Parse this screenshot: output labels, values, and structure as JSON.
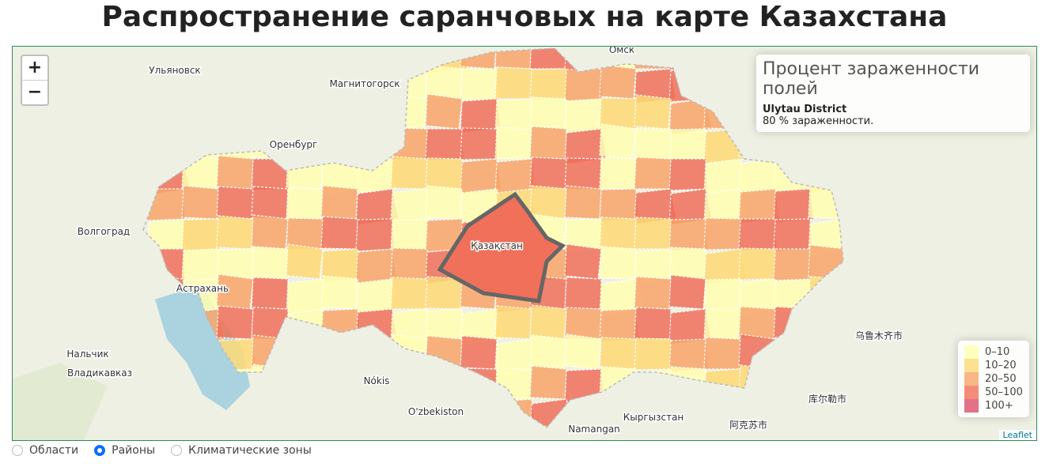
{
  "title": "Распространение саранчовых на карте Казахстана",
  "map": {
    "zoom_in": "+",
    "zoom_out": "−",
    "attribution": "Leaflet",
    "place_labels": [
      "Омск",
      "Ульяновск",
      "Магнитогорск",
      "Оренбург",
      "Волгоград",
      "Астрахань",
      "Нальчик",
      "Владикавказ",
      "Nókis",
      "O'zbekiston",
      "Namangan",
      "Кыргызстан",
      "Қазақстан",
      "乌鲁木齐市",
      "库尔勒市",
      "阿克苏市"
    ]
  },
  "info": {
    "title": "Процент зараженности полей",
    "district": "Ulytau District",
    "text": "80 % зараженности."
  },
  "legend": [
    {
      "label": "0–10",
      "color": "#ffffb2"
    },
    {
      "label": "10–20",
      "color": "#fed976"
    },
    {
      "label": "20–50",
      "color": "#f8a56a"
    },
    {
      "label": "50–100",
      "color": "#f0705a"
    },
    {
      "label": "100+",
      "color": "#d94f6a"
    }
  ],
  "layers": [
    {
      "label": "Области",
      "selected": false
    },
    {
      "label": "Районы",
      "selected": true
    },
    {
      "label": "Климатические зоны",
      "selected": false
    }
  ]
}
